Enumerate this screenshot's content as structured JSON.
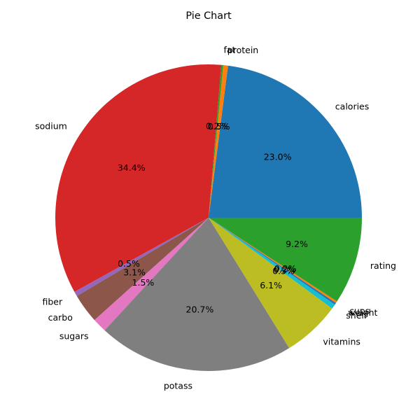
{
  "chart_data": {
    "type": "pie",
    "title": "Pie Chart",
    "start_angle_deg": 0,
    "direction": "counterclockwise",
    "slices": [
      {
        "label": "calories",
        "value": 23.0,
        "pct_text": "23.0%",
        "color": "#1f77b4"
      },
      {
        "label": "protein",
        "value": 0.5,
        "pct_text": "0.5%",
        "color": "#ff7f0e"
      },
      {
        "label": "fat",
        "value": 0.2,
        "pct_text": "0.2%",
        "color": "#2ca02c"
      },
      {
        "label": "sodium",
        "value": 34.4,
        "pct_text": "34.4%",
        "color": "#d62728"
      },
      {
        "label": "fiber",
        "value": 0.5,
        "pct_text": "0.5%",
        "color": "#9467bd"
      },
      {
        "label": "carbo",
        "value": 3.1,
        "pct_text": "3.1%",
        "color": "#8c564b"
      },
      {
        "label": "sugars",
        "value": 1.5,
        "pct_text": "1.5%",
        "color": "#e377c2"
      },
      {
        "label": "potass",
        "value": 20.7,
        "pct_text": "20.7%",
        "color": "#7f7f7f"
      },
      {
        "label": "vitamins",
        "value": 6.1,
        "pct_text": "6.1%",
        "color": "#bcbd22"
      },
      {
        "label": "shelf",
        "value": 0.5,
        "pct_text": "0.5%",
        "color": "#17becf"
      },
      {
        "label": "weight",
        "value": 0.2,
        "pct_text": "0.2%",
        "color": "#1f77b4"
      },
      {
        "label": "cups",
        "value": 0.2,
        "pct_text": "0.2%",
        "color": "#ff7f0e"
      },
      {
        "label": "rating",
        "value": 9.2,
        "pct_text": "9.2%",
        "color": "#2ca02c"
      }
    ]
  }
}
